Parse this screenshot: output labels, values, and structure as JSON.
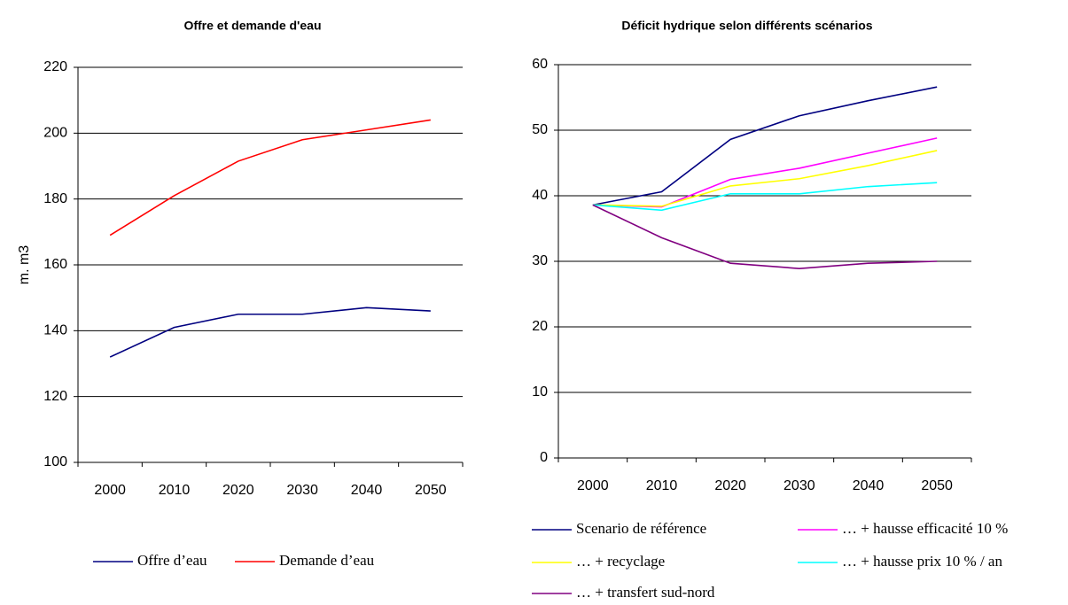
{
  "chart_data": [
    {
      "type": "line",
      "title": "Offre et demande d'eau",
      "y_label": "m. m3",
      "categories": [
        "2000",
        "2010",
        "2020",
        "2030",
        "2040",
        "2050"
      ],
      "series": [
        {
          "name": "Offre d’eau",
          "color": "#000080",
          "values": [
            132,
            141,
            145,
            145,
            147,
            146
          ]
        },
        {
          "name": "Demande d’eau",
          "color": "#ff0000",
          "values": [
            169,
            181,
            191.5,
            198,
            201,
            204
          ]
        }
      ],
      "ylim": [
        100,
        220
      ],
      "yticks": [
        100,
        120,
        140,
        160,
        180,
        200,
        220
      ],
      "grid": true
    },
    {
      "type": "line",
      "title": "Déficit hydrique selon différents scénarios",
      "categories": [
        "2000",
        "2010",
        "2020",
        "2030",
        "2040",
        "2050"
      ],
      "series": [
        {
          "name": "Scenario de référence",
          "color": "#000080",
          "values": [
            38.6,
            40.6,
            48.6,
            52.2,
            54.5,
            56.6
          ]
        },
        {
          "name": "… + hausse efficacité 10 %",
          "color": "#ff00ff",
          "values": [
            38.6,
            38.3,
            42.5,
            44.2,
            46.5,
            48.8
          ]
        },
        {
          "name": "… + recyclage",
          "color": "#ffff00",
          "values": [
            38.6,
            38.4,
            41.5,
            42.6,
            44.6,
            46.9
          ]
        },
        {
          "name": "… + hausse prix 10 % / an",
          "color": "#00ffff",
          "values": [
            38.6,
            37.8,
            40.3,
            40.3,
            41.4,
            42.0
          ]
        },
        {
          "name": "… + transfert sud-nord",
          "color": "#800080",
          "values": [
            38.6,
            33.6,
            29.7,
            28.9,
            29.7,
            30.0
          ]
        }
      ],
      "ylim": [
        0,
        60
      ],
      "yticks": [
        0,
        10,
        20,
        30,
        40,
        50,
        60
      ],
      "grid": true
    }
  ]
}
